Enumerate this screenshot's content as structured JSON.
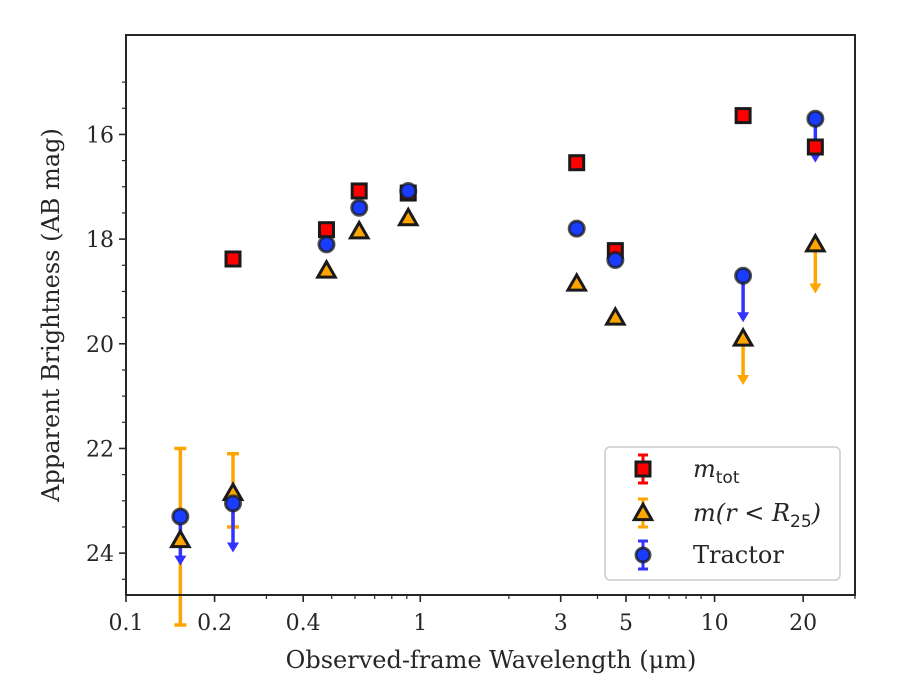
{
  "chart_data": {
    "type": "scatter",
    "xlabel": "Observed-frame Wavelength (μm)",
    "ylabel": "Apparent Brightness (AB mag)",
    "xscale": "log",
    "yaxis_inverted": true,
    "xlim": [
      0.1,
      30
    ],
    "ylim": [
      24.8,
      14.1
    ],
    "xticks": [
      {
        "value": 0.1,
        "label": "0.1"
      },
      {
        "value": 0.2,
        "label": "0.2"
      },
      {
        "value": 0.4,
        "label": "0.4"
      },
      {
        "value": 1,
        "label": "1"
      },
      {
        "value": 3,
        "label": "3"
      },
      {
        "value": 5,
        "label": "5"
      },
      {
        "value": 10,
        "label": "10"
      },
      {
        "value": 20,
        "label": "20"
      }
    ],
    "yticks": [
      {
        "value": 16,
        "label": "16"
      },
      {
        "value": 18,
        "label": "18"
      },
      {
        "value": 20,
        "label": "20"
      },
      {
        "value": 22,
        "label": "22"
      },
      {
        "value": 24,
        "label": "24"
      }
    ],
    "legend_position": "bottom-right",
    "series": [
      {
        "name": "m_tot",
        "label_text": "m",
        "label_sub": "tot",
        "marker": "square",
        "color": "#ff0000",
        "edge": "#1a1a1a",
        "points": [
          {
            "x": 0.231,
            "y": 18.38
          },
          {
            "x": 0.48,
            "y": 17.82
          },
          {
            "x": 0.62,
            "y": 17.08
          },
          {
            "x": 0.91,
            "y": 17.12
          },
          {
            "x": 3.4,
            "y": 16.54
          },
          {
            "x": 4.6,
            "y": 18.22
          },
          {
            "x": 12.5,
            "y": 15.64
          },
          {
            "x": 22.0,
            "y": 16.24
          }
        ]
      },
      {
        "name": "m(r < R25)",
        "label_text": "m(r < R",
        "label_sub": "25",
        "label_tail": ")",
        "marker": "triangle",
        "color": "#ffa500",
        "edge": "#1a1a1a",
        "points": [
          {
            "x": 0.153,
            "y": 23.75,
            "err_up": 1.75,
            "err_down": 1.75
          },
          {
            "x": 0.231,
            "y": 22.85,
            "err_up": 0.75,
            "err_down": 0.65
          },
          {
            "x": 0.48,
            "y": 18.6
          },
          {
            "x": 0.62,
            "y": 17.85
          },
          {
            "x": 0.91,
            "y": 17.6
          },
          {
            "x": 3.4,
            "y": 18.85
          },
          {
            "x": 4.6,
            "y": 19.5
          },
          {
            "x": 12.5,
            "y": 19.9,
            "upper_limit_to": 20.75
          },
          {
            "x": 22.0,
            "y": 18.1,
            "upper_limit_to": 19.0
          }
        ]
      },
      {
        "name": "Tractor",
        "label_text": "Tractor",
        "marker": "circle",
        "color": "#0000ff",
        "edge": "#1a1a1a",
        "points": [
          {
            "x": 0.153,
            "y": 23.3,
            "upper_limit_to": 24.2
          },
          {
            "x": 0.231,
            "y": 23.05,
            "upper_limit_to": 23.95
          },
          {
            "x": 0.48,
            "y": 18.1
          },
          {
            "x": 0.62,
            "y": 17.4
          },
          {
            "x": 0.91,
            "y": 17.08
          },
          {
            "x": 3.4,
            "y": 17.8
          },
          {
            "x": 4.6,
            "y": 18.4
          },
          {
            "x": 12.5,
            "y": 18.7,
            "upper_limit_to": 19.55
          },
          {
            "x": 22.0,
            "y": 15.7,
            "upper_limit_to": 16.5
          }
        ]
      }
    ]
  }
}
